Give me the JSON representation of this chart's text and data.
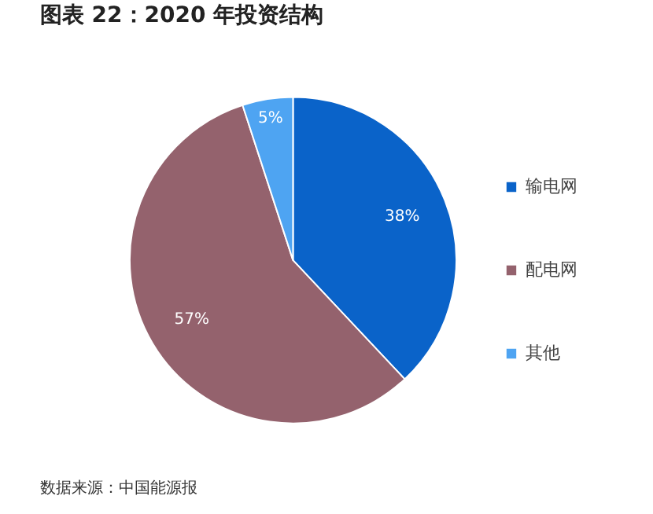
{
  "chart_data": {
    "type": "pie",
    "title": "图表 22：2020 年投资结构",
    "categories": [
      "输电网",
      "配电网",
      "其他"
    ],
    "values": [
      38,
      57,
      5
    ],
    "colors": [
      "#0a63c9",
      "#94626d",
      "#4ea4f2"
    ],
    "value_labels": [
      "38%",
      "57%",
      "5%"
    ],
    "legend": "right",
    "annotations": [
      "数据来源：中国能源报"
    ]
  }
}
